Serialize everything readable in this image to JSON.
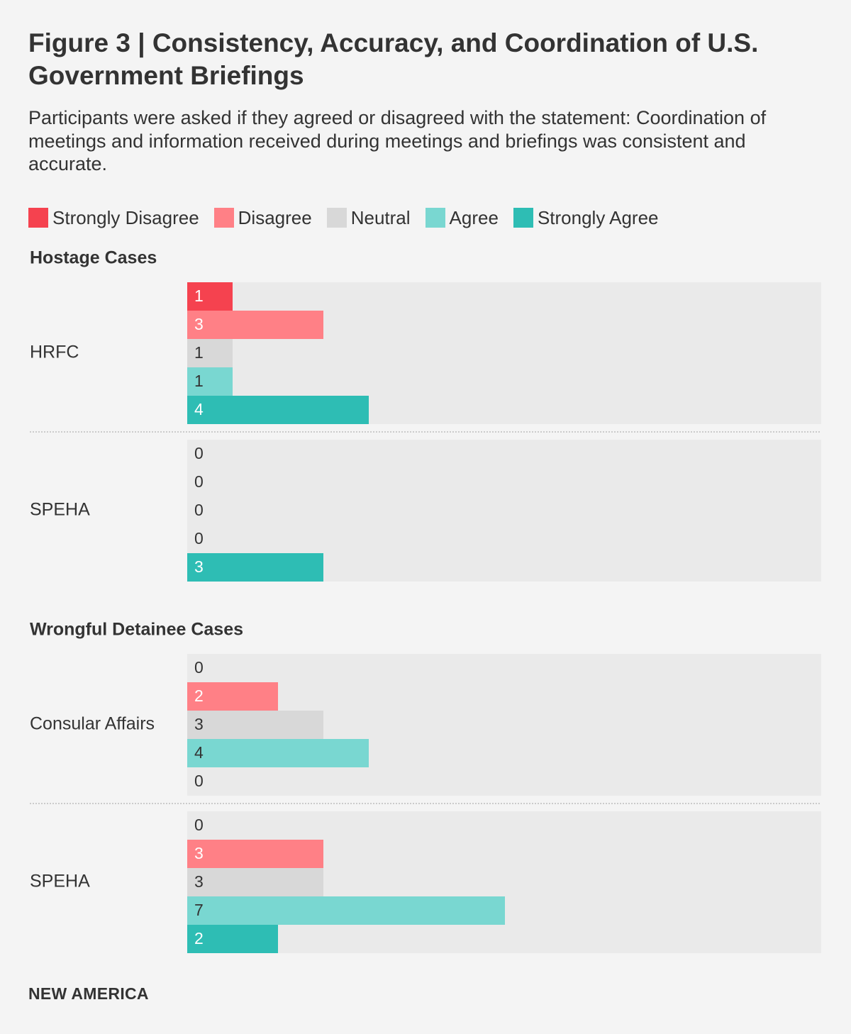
{
  "title": "Figure 3 | Consistency, Accuracy, and Coordination of U.S. Government Briefings",
  "subtitle": "Participants were asked if they agreed or disagreed with the statement: Coordination of meetings and information received during meetings and briefings was consistent and accurate.",
  "footer": "NEW AMERICA",
  "colors": {
    "strongly_disagree": "#f5424f",
    "disagree": "#ff8086",
    "neutral": "#d8d8d8",
    "agree": "#79d7d1",
    "strongly_agree": "#2ebdb4",
    "panel_bg": "#eaeaea",
    "page_bg": "#f4f4f4"
  },
  "legend": [
    {
      "label": "Strongly Disagree",
      "color": "#f5424f"
    },
    {
      "label": "Disagree",
      "color": "#ff8086"
    },
    {
      "label": "Neutral",
      "color": "#d8d8d8"
    },
    {
      "label": "Agree",
      "color": "#79d7d1"
    },
    {
      "label": "Strongly Agree",
      "color": "#2ebdb4"
    }
  ],
  "chart_data": {
    "type": "bar",
    "orientation": "horizontal",
    "series_names": [
      "Strongly Disagree",
      "Disagree",
      "Neutral",
      "Agree",
      "Strongly Agree"
    ],
    "xlim": [
      0,
      14
    ],
    "groups": [
      {
        "title": "Hostage Cases",
        "categories": [
          {
            "label": "HRFC",
            "values": [
              1,
              3,
              1,
              1,
              4
            ]
          },
          {
            "label": "SPEHA",
            "values": [
              0,
              0,
              0,
              0,
              3
            ]
          }
        ]
      },
      {
        "title": "Wrongful Detainee Cases",
        "categories": [
          {
            "label": "Consular Affairs",
            "values": [
              0,
              2,
              3,
              4,
              0
            ]
          },
          {
            "label": "SPEHA",
            "values": [
              0,
              3,
              3,
              7,
              2
            ]
          }
        ]
      }
    ]
  }
}
